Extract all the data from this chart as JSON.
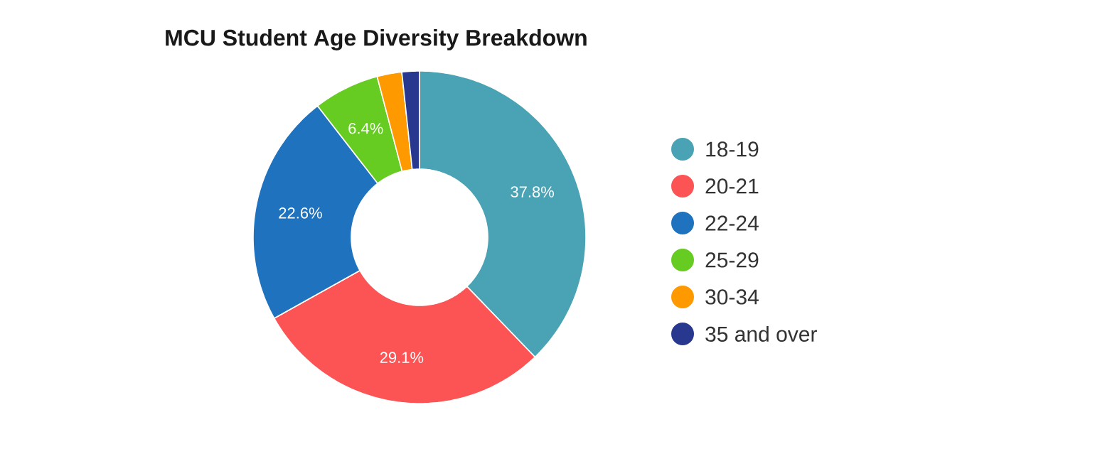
{
  "chart_data": {
    "type": "donut",
    "title": "MCU Student Age Diversity Breakdown",
    "categories": [
      "18-19",
      "20-21",
      "22-24",
      "25-29",
      "30-34",
      "35 and over"
    ],
    "values": [
      37.8,
      29.1,
      22.6,
      6.4,
      2.4,
      1.7
    ],
    "colors": [
      "#4aa3b5",
      "#fc5454",
      "#1f72bd",
      "#66cc22",
      "#ff9900",
      "#29388f"
    ],
    "value_labels": [
      "37.8%",
      "29.1%",
      "22.6%",
      "6.4%",
      null,
      null
    ],
    "legend": "right"
  }
}
